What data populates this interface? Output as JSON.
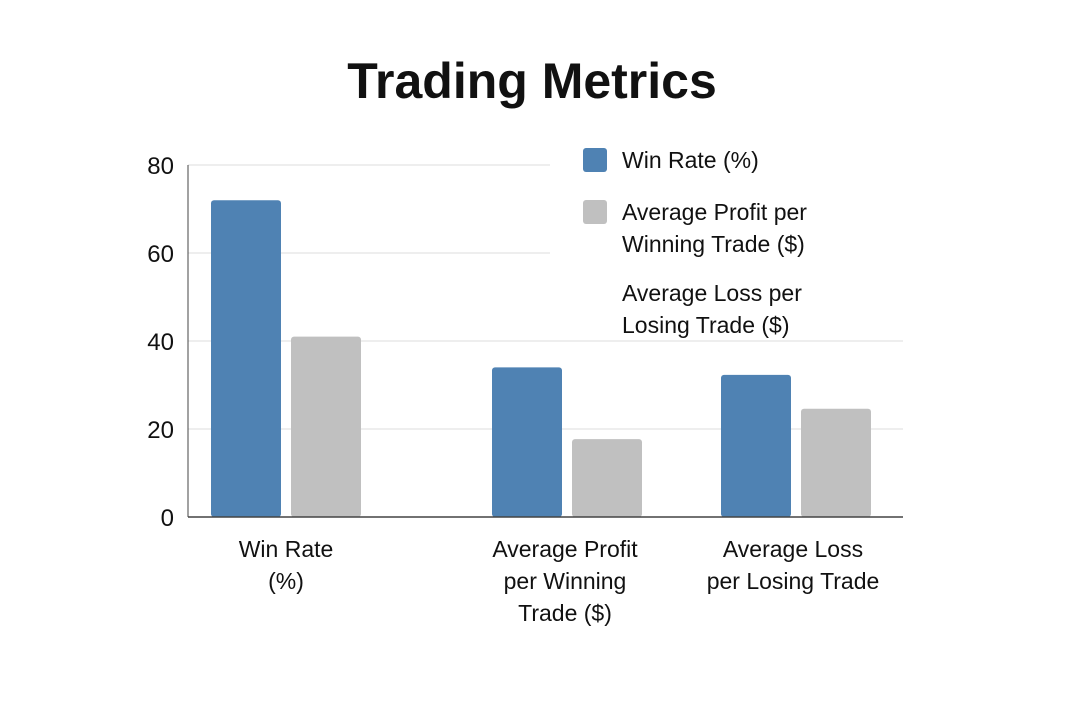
{
  "chart_data": {
    "type": "bar",
    "title": "Trading Metrics",
    "xlabel": "",
    "ylabel": "",
    "ylim": [
      0,
      80
    ],
    "yticks": [
      0,
      20,
      40,
      60,
      80
    ],
    "grid": true,
    "legend_position": "top-right",
    "categories": [
      [
        "Win Rate",
        "(%)"
      ],
      [
        "Average Profit",
        "per Winning",
        "Trade ($)"
      ],
      [
        "Average Loss",
        "per Losing Trade"
      ]
    ],
    "series": [
      {
        "color": "#4f82b3",
        "values": [
          72,
          34,
          32.3
        ]
      },
      {
        "color": "#c0c0c0",
        "values": [
          41,
          17.7,
          24.6
        ]
      }
    ],
    "legend": [
      {
        "label": [
          "Win Rate (%)"
        ],
        "color": "#4f82b3"
      },
      {
        "label": [
          "Average Profit per",
          "Winning Trade ($)"
        ],
        "color": "#c0c0c0"
      },
      {
        "label": [
          "Average Loss per",
          "Losing Trade ($)"
        ],
        "color": null
      }
    ]
  }
}
